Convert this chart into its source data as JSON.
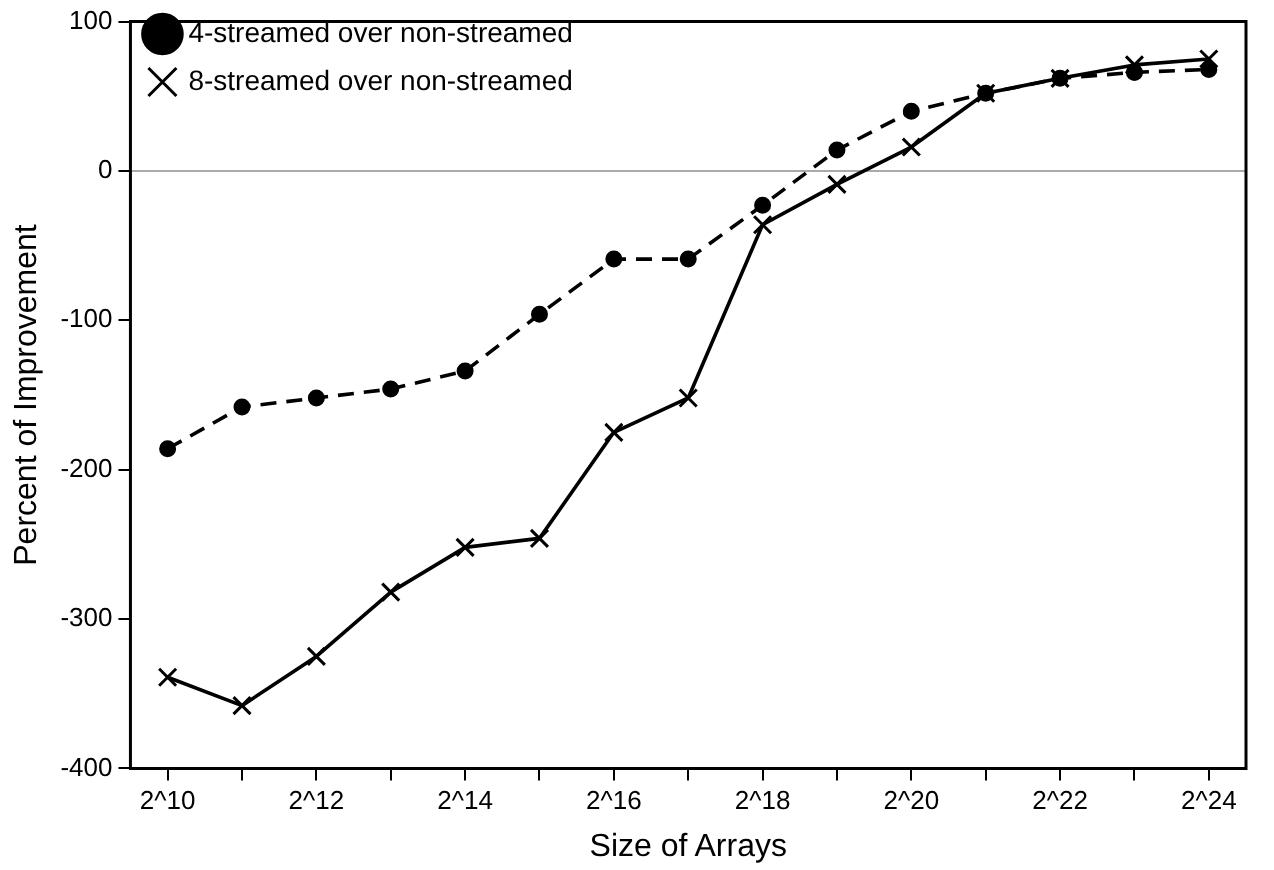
{
  "chart_data": {
    "type": "line",
    "xlabel": "Size of Arrays",
    "ylabel": "Percent of Improvement",
    "categories": [
      "2^10",
      null,
      "2^12",
      null,
      "2^14",
      null,
      "2^16",
      null,
      "2^18",
      null,
      "2^20",
      null,
      "2^22",
      null,
      "2^24"
    ],
    "series": [
      {
        "name": "4-streamed over non-streamed",
        "color": "#000000",
        "marker": "circle",
        "line_style": "dashed",
        "values": [
          -186,
          -158,
          -152,
          -146,
          -134,
          -96,
          -59,
          -59,
          -23,
          14,
          40,
          52,
          62,
          66,
          68
        ]
      },
      {
        "name": "8-streamed over non-streamed",
        "color": "#000000",
        "marker": "cross",
        "line_style": "solid",
        "values": [
          -339,
          -358,
          -325,
          -282,
          -252,
          -246,
          -175,
          -152,
          -36,
          -9,
          16,
          52,
          62,
          71,
          75
        ]
      }
    ],
    "ylim": [
      -400,
      100
    ],
    "yticks": [
      -400,
      -300,
      -200,
      -100,
      0,
      100
    ],
    "ref_lines": [
      {
        "axis": "y",
        "value": 0,
        "color": "#aaaaaa"
      }
    ],
    "grid": false,
    "legend": "top left"
  }
}
